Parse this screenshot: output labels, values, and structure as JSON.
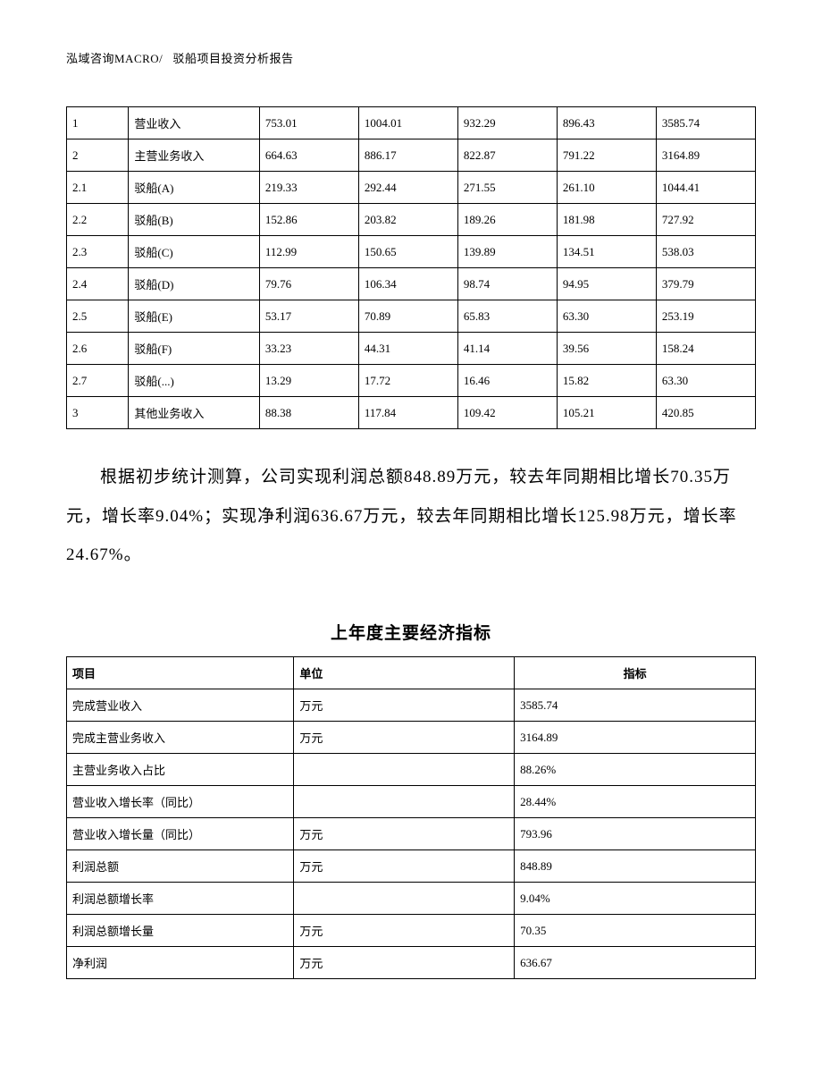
{
  "header": {
    "company": "泓域咨询MACRO/",
    "title": "驳船项目投资分析报告"
  },
  "table1": {
    "rows": [
      {
        "no": "1",
        "name": "营业收入",
        "v1": "753.01",
        "v2": "1004.01",
        "v3": "932.29",
        "v4": "896.43",
        "v5": "3585.74"
      },
      {
        "no": "2",
        "name": "主营业务收入",
        "v1": "664.63",
        "v2": "886.17",
        "v3": "822.87",
        "v4": "791.22",
        "v5": "3164.89"
      },
      {
        "no": "2.1",
        "name": "驳船(A)",
        "v1": "219.33",
        "v2": "292.44",
        "v3": "271.55",
        "v4": "261.10",
        "v5": "1044.41"
      },
      {
        "no": "2.2",
        "name": "驳船(B)",
        "v1": "152.86",
        "v2": "203.82",
        "v3": "189.26",
        "v4": "181.98",
        "v5": "727.92"
      },
      {
        "no": "2.3",
        "name": "驳船(C)",
        "v1": "112.99",
        "v2": "150.65",
        "v3": "139.89",
        "v4": "134.51",
        "v5": "538.03"
      },
      {
        "no": "2.4",
        "name": "驳船(D)",
        "v1": "79.76",
        "v2": "106.34",
        "v3": "98.74",
        "v4": "94.95",
        "v5": "379.79"
      },
      {
        "no": "2.5",
        "name": "驳船(E)",
        "v1": "53.17",
        "v2": "70.89",
        "v3": "65.83",
        "v4": "63.30",
        "v5": "253.19"
      },
      {
        "no": "2.6",
        "name": "驳船(F)",
        "v1": "33.23",
        "v2": "44.31",
        "v3": "41.14",
        "v4": "39.56",
        "v5": "158.24"
      },
      {
        "no": "2.7",
        "name": "驳船(...)",
        "v1": "13.29",
        "v2": "17.72",
        "v3": "16.46",
        "v4": "15.82",
        "v5": "63.30"
      },
      {
        "no": "3",
        "name": "其他业务收入",
        "v1": "88.38",
        "v2": "117.84",
        "v3": "109.42",
        "v4": "105.21",
        "v5": "420.85"
      }
    ]
  },
  "paragraph": {
    "text": "根据初步统计测算，公司实现利润总额848.89万元，较去年同期相比增长70.35万元，增长率9.04%；实现净利润636.67万元，较去年同期相比增长125.98万元，增长率24.67%。"
  },
  "table2": {
    "title": "上年度主要经济指标",
    "headers": {
      "c0": "项目",
      "c1": "单位",
      "c2": "指标"
    },
    "rows": [
      {
        "item": "完成营业收入",
        "unit": "万元",
        "val": "3585.74"
      },
      {
        "item": "完成主营业务收入",
        "unit": "万元",
        "val": "3164.89"
      },
      {
        "item": "主营业务收入占比",
        "unit": "",
        "val": "88.26%"
      },
      {
        "item": "营业收入增长率（同比）",
        "unit": "",
        "val": "28.44%"
      },
      {
        "item": "营业收入增长量（同比）",
        "unit": "万元",
        "val": "793.96"
      },
      {
        "item": "利润总额",
        "unit": "万元",
        "val": "848.89"
      },
      {
        "item": "利润总额增长率",
        "unit": "",
        "val": "9.04%"
      },
      {
        "item": "利润总额增长量",
        "unit": "万元",
        "val": "70.35"
      },
      {
        "item": "净利润",
        "unit": "万元",
        "val": "636.67"
      }
    ]
  }
}
